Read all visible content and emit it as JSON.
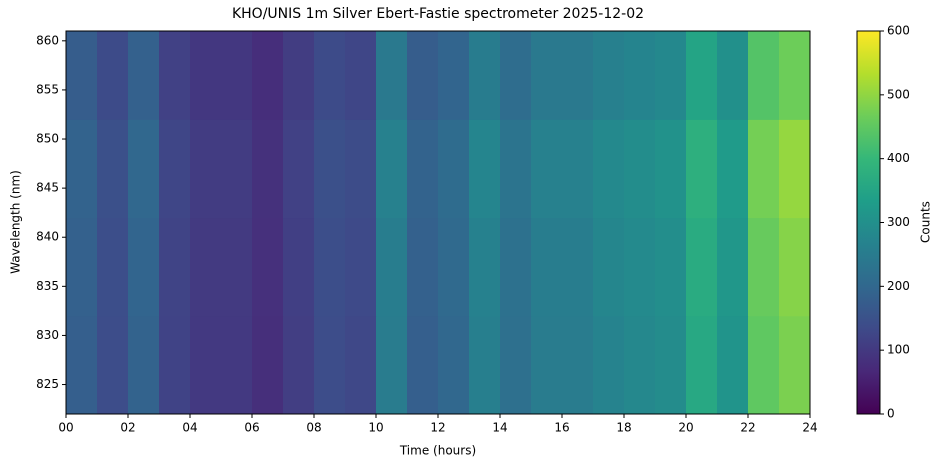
{
  "chart_data": {
    "type": "heatmap",
    "title": "KHO/UNIS 1m Silver Ebert-Fastie spectrometer 2025-12-02",
    "x_label": "Time (hours)",
    "y_label": "Wavelength (nm)",
    "colorbar_label": "Counts",
    "colormap": "viridis",
    "xbins": [
      0,
      1,
      2,
      3,
      4,
      5,
      6,
      7,
      8,
      9,
      10,
      11,
      12,
      13,
      14,
      15,
      16,
      17,
      18,
      19,
      20,
      21,
      22,
      23,
      24
    ],
    "ybins": [
      822,
      832,
      842,
      852,
      861
    ],
    "values": [
      [
        180,
        140,
        190,
        120,
        100,
        100,
        80,
        110,
        140,
        130,
        250,
        180,
        200,
        260,
        220,
        250,
        250,
        270,
        280,
        290,
        360,
        310,
        450,
        480
      ],
      [
        184,
        143,
        194,
        122,
        102,
        102,
        82,
        112,
        143,
        133,
        255,
        184,
        204,
        265,
        224,
        255,
        255,
        275,
        286,
        296,
        367,
        316,
        459,
        490
      ],
      [
        189,
        147,
        200,
        126,
        105,
        105,
        84,
        116,
        147,
        137,
        263,
        189,
        210,
        273,
        231,
        263,
        263,
        284,
        294,
        305,
        378,
        326,
        473,
        504
      ],
      [
        175,
        136,
        184,
        116,
        97,
        97,
        78,
        107,
        136,
        126,
        243,
        175,
        194,
        252,
        213,
        243,
        243,
        262,
        272,
        281,
        349,
        301,
        437,
        466
      ]
    ],
    "xlim": [
      0,
      24
    ],
    "ylim": [
      822,
      861
    ],
    "xticks": [
      {
        "value": 0,
        "label": "00"
      },
      {
        "value": 2,
        "label": "02"
      },
      {
        "value": 4,
        "label": "04"
      },
      {
        "value": 6,
        "label": "06"
      },
      {
        "value": 8,
        "label": "08"
      },
      {
        "value": 10,
        "label": "10"
      },
      {
        "value": 12,
        "label": "12"
      },
      {
        "value": 14,
        "label": "14"
      },
      {
        "value": 16,
        "label": "16"
      },
      {
        "value": 18,
        "label": "18"
      },
      {
        "value": 20,
        "label": "20"
      },
      {
        "value": 22,
        "label": "22"
      },
      {
        "value": 24,
        "label": "24"
      }
    ],
    "yticks": [
      825,
      830,
      835,
      840,
      845,
      850,
      855,
      860
    ],
    "clim": [
      0,
      600
    ],
    "cticks": [
      0,
      100,
      200,
      300,
      400,
      500,
      600
    ]
  }
}
